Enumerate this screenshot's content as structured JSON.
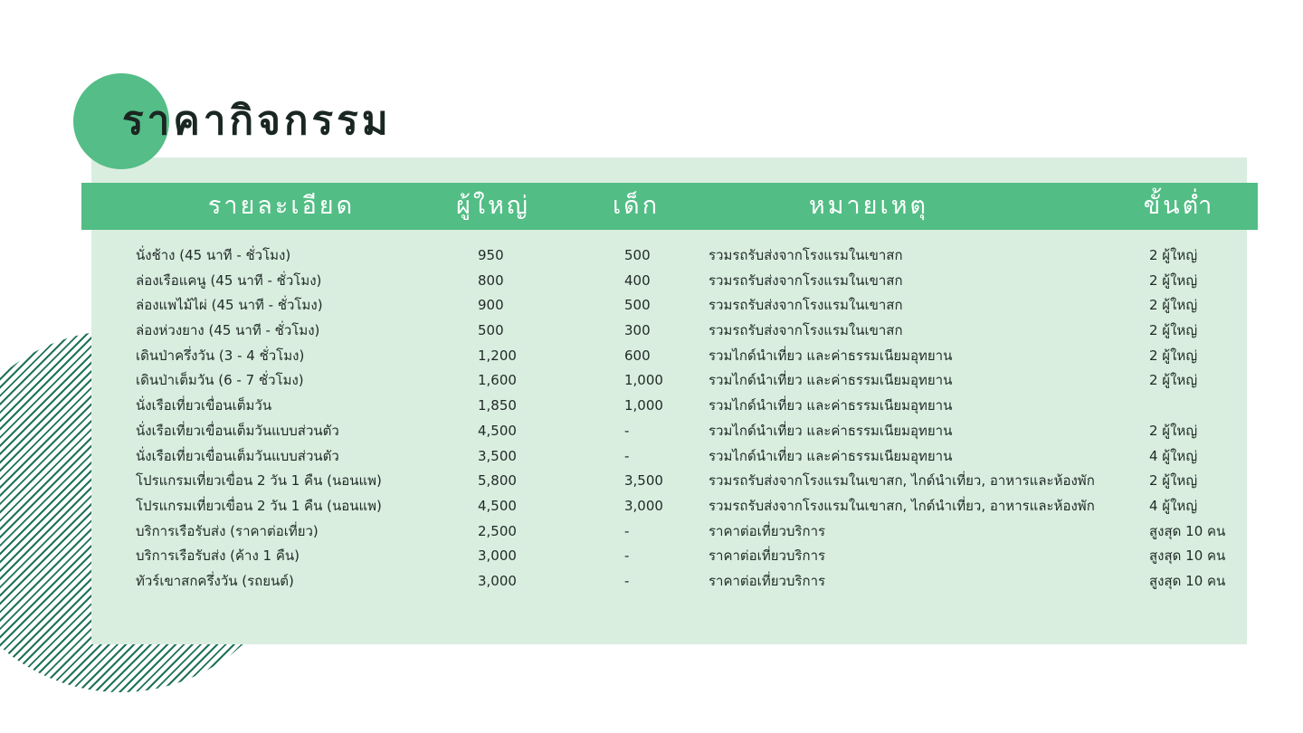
{
  "title": "ราคากิจกรรม",
  "colors": {
    "accent": "#52bd85",
    "panel": "#daeee0",
    "stripes": "#1f7358",
    "title_text": "#1a2622"
  },
  "table": {
    "headers": [
      "รายละเอียด",
      "ผู้ใหญ่",
      "เด็ก",
      "หมายเหตุ",
      "ขั้นต่ำ"
    ],
    "rows": [
      [
        "นั่งช้าง (45 นาที - ชั่วโมง)",
        "950",
        "500",
        "รวมรถรับส่งจากโรงแรมในเขาสก",
        "2 ผู้ใหญ่"
      ],
      [
        "ล่องเรือแคนู (45 นาที - ชั่วโมง)",
        "800",
        "400",
        "รวมรถรับส่งจากโรงแรมในเขาสก",
        "2 ผู้ใหญ่"
      ],
      [
        "ล่องแพไม้ไผ่ (45 นาที - ชั่วโมง)",
        "900",
        "500",
        "รวมรถรับส่งจากโรงแรมในเขาสก",
        "2 ผู้ใหญ่"
      ],
      [
        "ล่องห่วงยาง (45 นาที - ชั่วโมง)",
        "500",
        "300",
        "รวมรถรับส่งจากโรงแรมในเขาสก",
        "2 ผู้ใหญ่"
      ],
      [
        "เดินป่าครึ่งวัน (3 - 4 ชั่วโมง)",
        "1,200",
        "600",
        "รวมไกด์นำเที่ยว และค่าธรรมเนียมอุทยาน",
        "2 ผู้ใหญ่"
      ],
      [
        "เดินป่าเต็มวัน  (6 - 7 ชั่วโมง)",
        "1,600",
        "1,000",
        "รวมไกด์นำเที่ยว และค่าธรรมเนียมอุทยาน",
        "2 ผู้ใหญ่"
      ],
      [
        "นั่งเรือเที่ยวเขื่อนเต็มวัน",
        "1,850",
        "1,000",
        "รวมไกด์นำเที่ยว และค่าธรรมเนียมอุทยาน",
        ""
      ],
      [
        "นั่งเรือเที่ยวเขื่อนเต็มวันแบบส่วนตัว",
        "4,500",
        "-",
        "รวมไกด์นำเที่ยว และค่าธรรมเนียมอุทยาน",
        "2 ผู้ใหญ่"
      ],
      [
        "นั่งเรือเที่ยวเขื่อนเต็มวันแบบส่วนตัว",
        "3,500",
        "-",
        "รวมไกด์นำเที่ยว และค่าธรรมเนียมอุทยาน",
        "4 ผู้ใหญ่"
      ],
      [
        "โปรแกรมเที่ยวเขื่อน 2 วัน 1 คืน (นอนแพ)",
        "5,800",
        "3,500",
        "รวมรถรับส่งจากโรงแรมในเขาสก, ไกด์นำเที่ยว, อาหารและห้องพัก",
        "2 ผู้ใหญ่"
      ],
      [
        "โปรแกรมเที่ยวเขื่อน 2 วัน 1 คืน (นอนแพ)",
        "4,500",
        "3,000",
        "รวมรถรับส่งจากโรงแรมในเขาสก, ไกด์นำเที่ยว, อาหารและห้องพัก",
        "4 ผู้ใหญ่"
      ],
      [
        "บริการเรือรับส่ง (ราคาต่อเที่ยว)",
        "2,500",
        "-",
        "ราคาต่อเที่ยวบริการ",
        "สูงสุด 10 คน"
      ],
      [
        "บริการเรือรับส่ง (ค้าง 1 คืน)",
        "3,000",
        "-",
        "ราคาต่อเที่ยวบริการ",
        "สูงสุด 10 คน"
      ],
      [
        "ทัวร์เขาสกครึ่งวัน (รถยนต์)",
        "3,000",
        "-",
        "ราคาต่อเที่ยวบริการ",
        "สูงสุด 10 คน"
      ]
    ]
  }
}
